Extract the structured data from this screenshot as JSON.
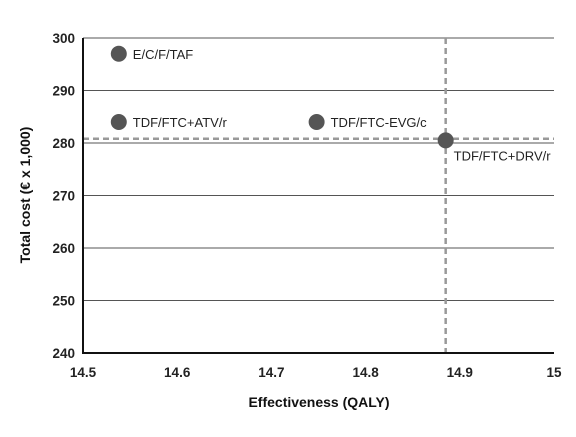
{
  "chart_data": {
    "type": "scatter",
    "title": "",
    "xlabel": "Effectiveness (QALY)",
    "ylabel": "Total cost (€ x 1,000)",
    "xlim": [
      14.5,
      15
    ],
    "ylim": [
      240,
      300
    ],
    "xticks": [
      "14.5",
      "14.6",
      "14.7",
      "14.8",
      "14.9",
      "15"
    ],
    "yticks": [
      "240",
      "250",
      "260",
      "270",
      "280",
      "290",
      "300"
    ],
    "grid": "horizontal",
    "points": [
      {
        "label": "E/C/F/TAF",
        "x": 14.538,
        "y": 297.0
      },
      {
        "label": "TDF/FTC+ATV/r",
        "x": 14.538,
        "y": 284.0
      },
      {
        "label": "TDF/FTC-EVG/c",
        "x": 14.748,
        "y": 284.0
      },
      {
        "label": "TDF/FTC+DRV/r",
        "x": 14.885,
        "y": 280.5
      }
    ],
    "reference_point": {
      "x": 14.885,
      "y": 280.8
    },
    "colors": {
      "marker": "#555555",
      "reference": "#999999",
      "grid": "#555555"
    }
  }
}
